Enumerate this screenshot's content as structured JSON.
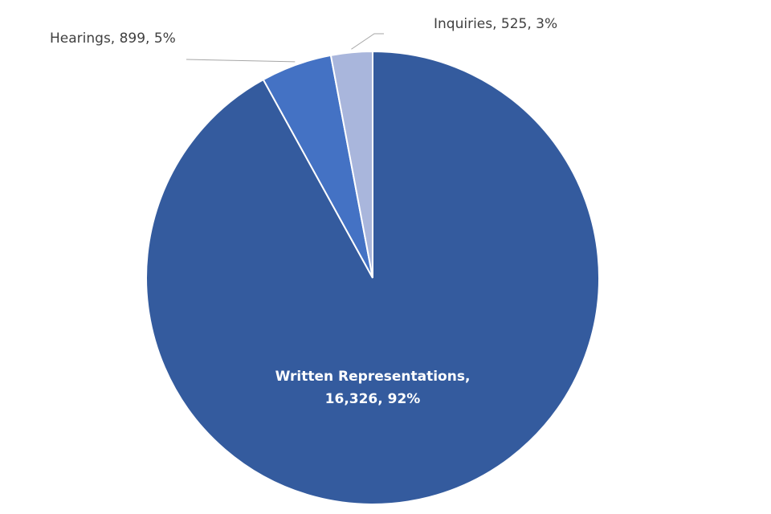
{
  "chart_data": {
    "type": "pie",
    "categories": [
      "Written Representations",
      "Hearings",
      "Inquiries"
    ],
    "values": [
      16326,
      899,
      525
    ],
    "value_labels": [
      "Written Representations, 16,326, 92%",
      "Hearings, 899, 5%",
      "Inquiries, 525, 3%"
    ],
    "colors": [
      "#345b9e",
      "#4472c4",
      "#a9b6dc"
    ]
  }
}
